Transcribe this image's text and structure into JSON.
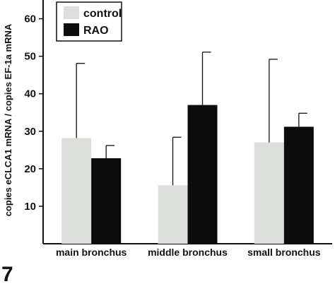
{
  "panel_label": "7",
  "chart_data": {
    "type": "bar",
    "categories": [
      "main bronchus",
      "middle bronchus",
      "small bronchus"
    ],
    "series": [
      {
        "name": "control",
        "values": [
          28.2,
          15.6,
          27.0
        ],
        "error_upper": [
          48.1,
          28.4,
          49.2
        ],
        "color": "#dcdfd9"
      },
      {
        "name": "RAO",
        "values": [
          22.8,
          37.0,
          31.2
        ],
        "error_upper": [
          26.2,
          51.1,
          34.8
        ],
        "color": "#0c0c0c"
      }
    ],
    "title": "",
    "xlabel": "",
    "ylabel": "copies eCLCA1 mRNA / copies EF-1a mRNA",
    "ylim": [
      0,
      65
    ],
    "yticks": [
      10,
      20,
      30,
      40,
      50,
      60
    ],
    "legend": "top-left",
    "grid": false,
    "error_bars": "upper only"
  }
}
